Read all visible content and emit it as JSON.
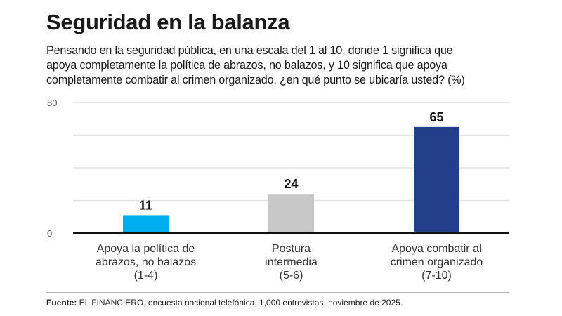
{
  "header": {
    "title": "Seguridad en la balanza",
    "subtitle_lines": [
      "Pensando en la seguridad pública, en una escala del 1 al 10, donde 1 significa que",
      "apoya completamente la política de abrazos, no balazos, y 10 significa que apoya",
      "completamente combatir al crimen organizado, ¿en qué punto se ubicaría usted? (%)"
    ]
  },
  "chart_data": {
    "type": "bar",
    "title": "Seguridad en la balanza",
    "xlabel": "",
    "ylabel": "%",
    "ylim": [
      0,
      80
    ],
    "yticks": [
      0,
      20,
      40,
      60,
      80
    ],
    "ytick_labels": [
      "0",
      "80"
    ],
    "grid": true,
    "legend": "none",
    "categories": [
      [
        "Apoya la política de",
        "abrazos, no balazos",
        "(1-4)"
      ],
      [
        "Postura",
        "intermedia",
        "(5-6)"
      ],
      [
        "Apoya combatir al",
        "crimen organizado",
        "(7-10)"
      ]
    ],
    "values": [
      11,
      24,
      65
    ],
    "value_labels": [
      "11",
      "24",
      "65"
    ],
    "colors": [
      "#00AEEF",
      "#C8C8C8",
      "#233E8B"
    ]
  },
  "footer": {
    "source_label": "Fuente:",
    "source_text": " EL FINANCIERO, encuesta nacional telefónica, 1,000 entrevistas, noviembre de 2025."
  }
}
